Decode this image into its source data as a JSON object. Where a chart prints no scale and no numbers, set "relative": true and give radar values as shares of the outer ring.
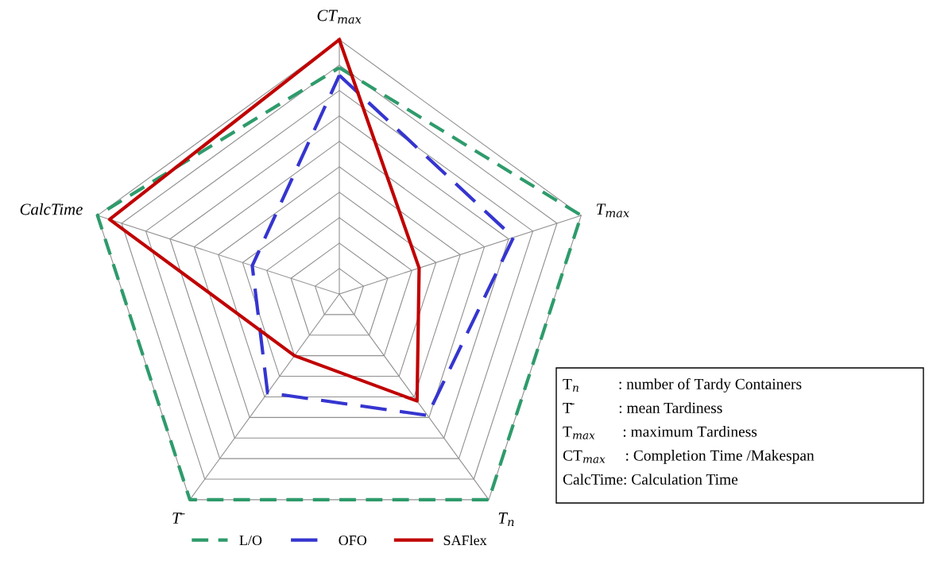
{
  "chart_data": {
    "type": "radar",
    "relative": true,
    "categories": [
      "CT$_{max}$",
      "T$_{max}$",
      "T$_{n}$",
      "T̄",
      "CalcTime"
    ],
    "series": [
      {
        "name": "L/O",
        "color": "#2e9b6b",
        "line_style": "dashed",
        "values": [
          0.89,
          1.0,
          1.0,
          1.0,
          1.0
        ]
      },
      {
        "name": "OFO",
        "color": "#3535d0",
        "line_style": "dashed",
        "values": [
          0.86,
          0.72,
          0.59,
          0.48,
          0.36
        ]
      },
      {
        "name": "SAFlex",
        "color": "#c00000",
        "line_style": "solid",
        "values": [
          1.0,
          0.33,
          0.52,
          0.3,
          0.95
        ]
      }
    ],
    "grid": true,
    "legend": "bottom",
    "marker": "none",
    "annotations": [
      "T$_{n}$          : number of Tardy Containers",
      "T̄            : mean Tardiness",
      "T$_{max}$       : maximum Tardiness",
      "CT$_{max}$     : Completion Time /Makespan",
      "CalcTime: Calculation Time"
    ]
  }
}
